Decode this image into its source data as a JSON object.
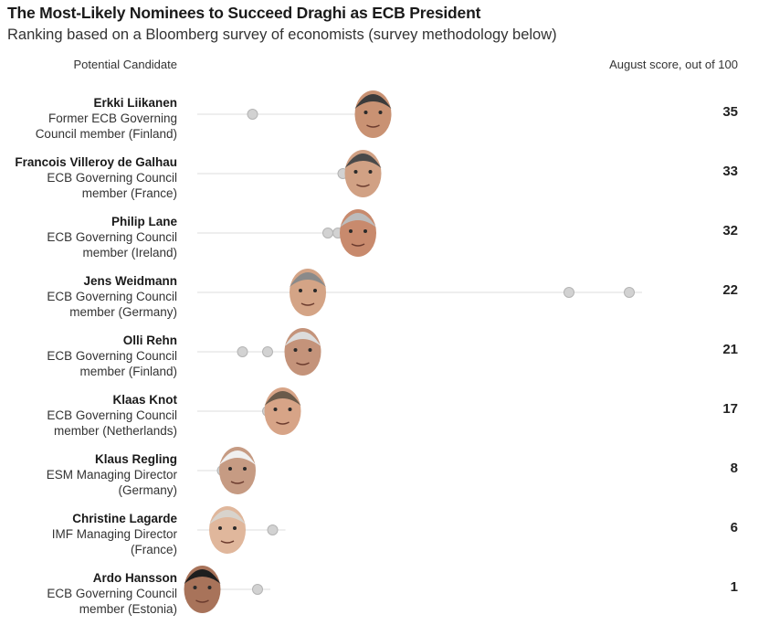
{
  "header": {
    "title": "The Most-Likely Nominees to Succeed Draghi as ECB President",
    "subtitle": "Ranking based on a Bloomberg survey of economists (survey methodology below)",
    "col_candidate": "Potential Candidate",
    "col_score": "August score, out of 100"
  },
  "colors": {
    "line": "#dcdcdc",
    "dot_fill": "#d2d2d2",
    "dot_stroke": "#b4b4b4",
    "text": "#222222"
  },
  "chart_data": {
    "type": "scatter",
    "title": "The Most-Likely Nominees to Succeed Draghi as ECB President",
    "subtitle": "Ranking based on a Bloomberg survey of economists (survey methodology below)",
    "x_axis_unit": "score, out of 100",
    "x_range": [
      0,
      100
    ],
    "note": "",
    "candidates": [
      {
        "name": "Erkki Liikanen",
        "desc1": "Former ECB Governing",
        "desc2": "Council member (Finland)",
        "score": 35,
        "other_scores": [
          11,
          33
        ]
      },
      {
        "name": "Francois Villeroy de Galhau",
        "desc1": "ECB Governing Council",
        "desc2": "member (France)",
        "score": 33,
        "other_scores": [
          29,
          31
        ]
      },
      {
        "name": "Philip Lane",
        "desc1": "ECB Governing Council",
        "desc2": "member (Ireland)",
        "score": 32,
        "other_scores": [
          26,
          28
        ]
      },
      {
        "name": "Jens Weidmann",
        "desc1": "ECB Governing Council",
        "desc2": "member (Germany)",
        "score": 22,
        "other_scores": [
          74,
          86
        ]
      },
      {
        "name": "Olli Rehn",
        "desc1": "ECB Governing Council",
        "desc2": "member (Finland)",
        "score": 21,
        "other_scores": [
          9,
          14
        ]
      },
      {
        "name": "Klaas Knot",
        "desc1": "ECB Governing Council",
        "desc2": "member (Netherlands)",
        "score": 17,
        "other_scores": [
          14,
          16
        ]
      },
      {
        "name": "Klaus Regling",
        "desc1": "ESM Managing Director",
        "desc2": "(Germany)",
        "score": 8,
        "other_scores": [
          5,
          7
        ]
      },
      {
        "name": "Christine Lagarde",
        "desc1": "IMF Managing Director",
        "desc2": "(France)",
        "score": 6,
        "other_scores": [
          15
        ]
      },
      {
        "name": "Ardo Hansson",
        "desc1": "ECB Governing Council",
        "desc2": "member (Estonia)",
        "score": 1,
        "other_scores": [
          12
        ]
      }
    ]
  }
}
